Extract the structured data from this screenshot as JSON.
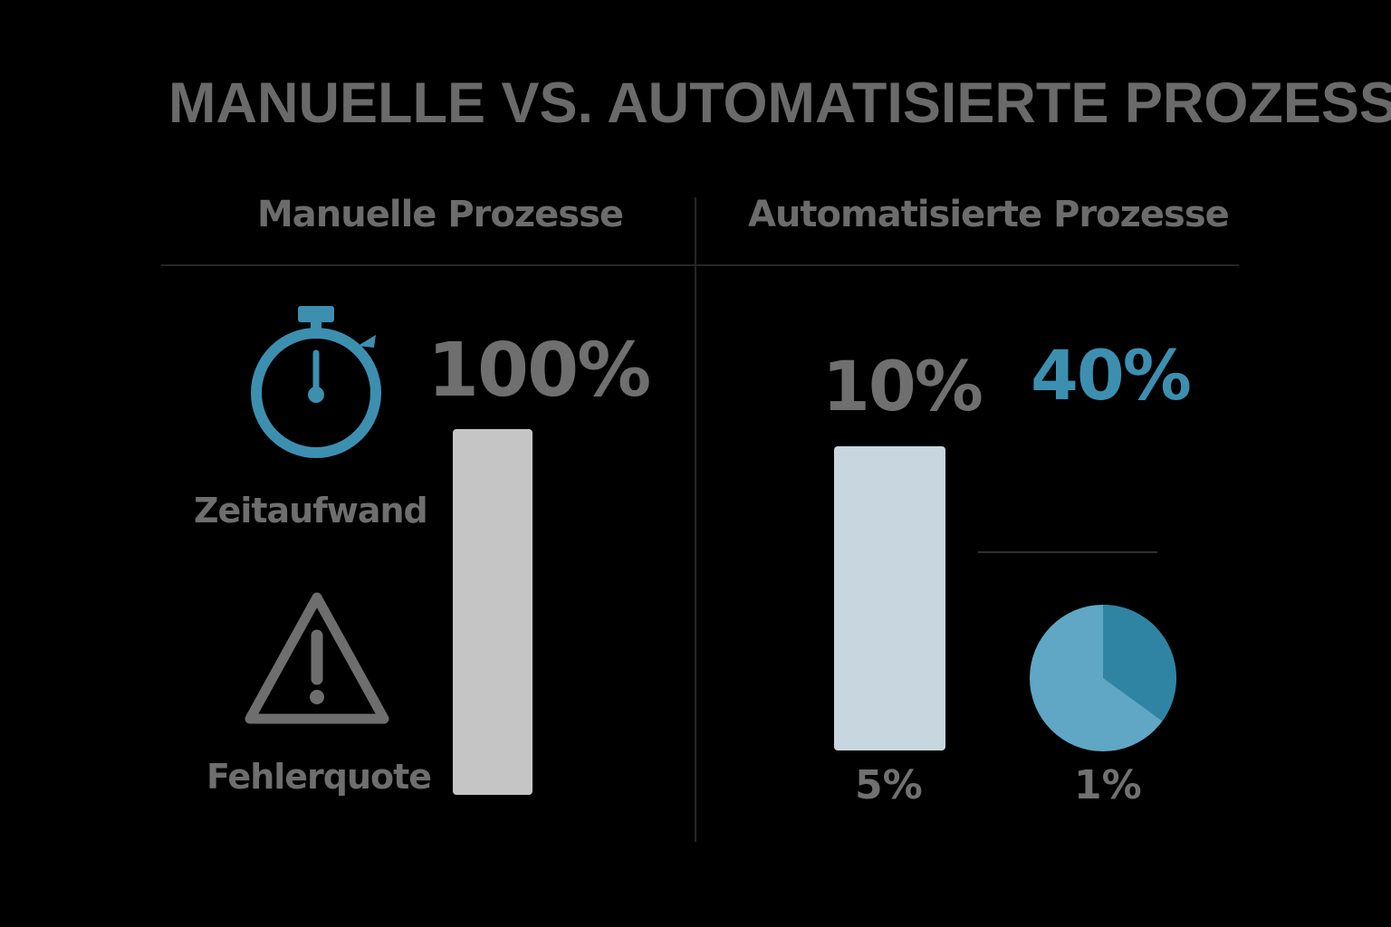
{
  "title": "MANUELLE VS. AUTOMATISIERTE PROZESSE",
  "colors": {
    "background": "#000000",
    "accent_blue": "#3d8fb0",
    "text_gray": "#6c6c6c",
    "bar_left": "#c4c5c4",
    "bar_right": "#c7d6df",
    "pie_light": "#5fa7c4",
    "pie_dark": "#2f84a3"
  },
  "chart_data": [
    {
      "type": "bar",
      "title": "Manuelle Prozesse",
      "metrics": [
        {
          "label": "Zeitaufwand",
          "value_label": "100%",
          "icon": "stopwatch-icon"
        },
        {
          "label": "Fehlerquote",
          "icon": "warning-icon"
        }
      ],
      "bar": {
        "value": 100,
        "unit": "%"
      }
    },
    {
      "type": "bar",
      "title": "Automatisierte Prozesse",
      "bar": {
        "top_label": "10%",
        "bottom_label": "5%",
        "value": 10,
        "unit": "%"
      },
      "pie": {
        "top_label": "40%",
        "bottom_label": "1%",
        "highlight_fraction": 0.35
      }
    }
  ]
}
